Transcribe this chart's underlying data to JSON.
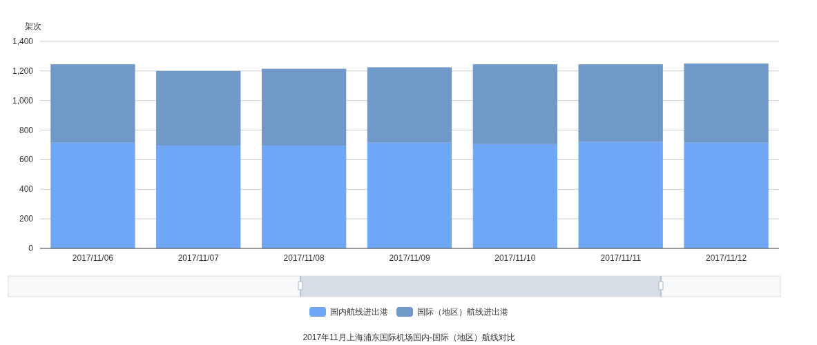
{
  "chart_data": {
    "type": "bar",
    "stacked": true,
    "ylabel": "架次",
    "categories": [
      "2017/11/06",
      "2017/11/07",
      "2017/11/08",
      "2017/11/09",
      "2017/11/10",
      "2017/11/11",
      "2017/11/12"
    ],
    "series": [
      {
        "name": "国内航线进出港",
        "color": "#6fa6f6",
        "values": [
          715,
          695,
          695,
          715,
          705,
          720,
          715
        ]
      },
      {
        "name": "国际（地区）航线进出港",
        "color": "#7099c9",
        "values": [
          530,
          505,
          520,
          510,
          540,
          525,
          535
        ]
      }
    ],
    "ylim": [
      0,
      1400
    ],
    "yticks": [
      0,
      200,
      400,
      600,
      800,
      {
        "value": 1000,
        "label": "1,000"
      },
      {
        "value": 1200,
        "label": "1,200"
      },
      {
        "value": 1400,
        "label": "1,400"
      }
    ],
    "grid": "y",
    "legend": "bottom",
    "annotations": [
      "2017年11月上海浦东国际机场国内-国际（地区）航线对比"
    ]
  }
}
